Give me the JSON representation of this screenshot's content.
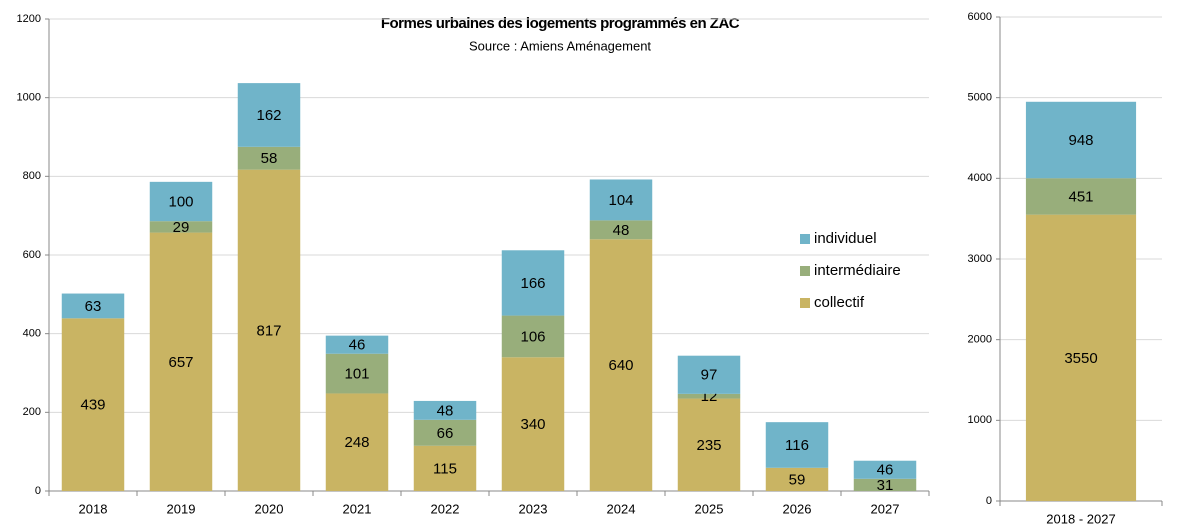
{
  "chart_data": [
    {
      "type": "stacked_bar",
      "title": "Formes urbaines des logements programmés en ZAC",
      "subtitle": "Source : Amiens Aménagement",
      "categories": [
        "2018",
        "2019",
        "2020",
        "2021",
        "2022",
        "2023",
        "2024",
        "2025",
        "2026",
        "2027"
      ],
      "series": [
        {
          "name": "collectif",
          "color": "#c9b463",
          "values": [
            439,
            657,
            817,
            248,
            115,
            340,
            640,
            235,
            59,
            0
          ]
        },
        {
          "name": "intermédiaire",
          "color": "#98ae7b",
          "values": [
            0,
            29,
            58,
            101,
            66,
            106,
            48,
            12,
            0,
            31
          ]
        },
        {
          "name": "individuel",
          "color": "#70b4c9",
          "values": [
            63,
            100,
            162,
            46,
            48,
            166,
            104,
            97,
            116,
            46
          ]
        }
      ],
      "ylim": [
        0,
        1200
      ],
      "yticks": [
        0,
        200,
        400,
        600,
        800,
        1000,
        1200
      ],
      "grid": true,
      "legend": "right"
    },
    {
      "type": "stacked_bar",
      "categories": [
        "2018 - 2027"
      ],
      "series": [
        {
          "color": "#c9b463",
          "values": [
            3550
          ]
        },
        {
          "color": "#98ae7b",
          "values": [
            451
          ]
        },
        {
          "color": "#70b4c9",
          "values": [
            948
          ]
        }
      ],
      "ylim": [
        0,
        6000
      ],
      "yticks": [
        0,
        1000,
        2000,
        3000,
        4000,
        5000,
        6000
      ],
      "grid": true
    }
  ]
}
